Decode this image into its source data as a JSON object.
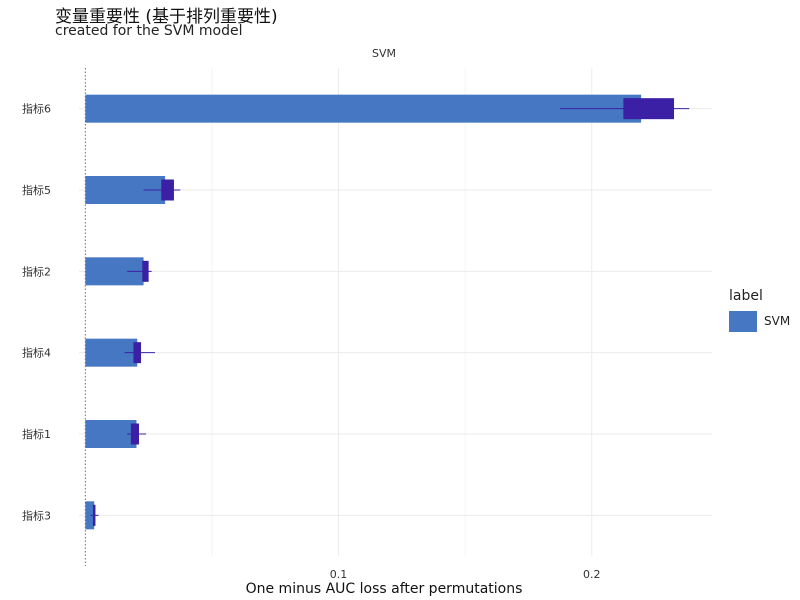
{
  "chart_data": {
    "type": "bar",
    "title": "变量重要性 (基于排列重要性)",
    "subtitle": "created for the SVM model",
    "facet_label": "SVM",
    "xlabel": "One minus AUC loss after permutations",
    "ylabel": "",
    "xlim": [
      -0.0025,
      0.2475
    ],
    "x_ticks": [
      0.1,
      0.2
    ],
    "x_tick_labels": [
      "0.1",
      "0.2"
    ],
    "baseline": 0.0,
    "orientation": "horizontal",
    "categories": [
      "指标6",
      "指标5",
      "指标2",
      "指标4",
      "指标1",
      "指标3"
    ],
    "series": [
      {
        "name": "SVM",
        "values": [
          0.2195,
          0.0315,
          0.023,
          0.0205,
          0.0202,
          0.0035
        ]
      }
    ],
    "boxplots": [
      {
        "category": "指标6",
        "whisker_low": 0.1875,
        "q1": 0.2125,
        "q3": 0.2325,
        "whisker_high": 0.2385
      },
      {
        "category": "指标5",
        "whisker_low": 0.023,
        "q1": 0.03,
        "q3": 0.035,
        "whisker_high": 0.0375
      },
      {
        "category": "指标2",
        "whisker_low": 0.0165,
        "q1": 0.0225,
        "q3": 0.025,
        "whisker_high": 0.0262
      },
      {
        "category": "指标4",
        "whisker_low": 0.0155,
        "q1": 0.019,
        "q3": 0.022,
        "whisker_high": 0.0275
      },
      {
        "category": "指标1",
        "whisker_low": 0.0165,
        "q1": 0.018,
        "q3": 0.0212,
        "whisker_high": 0.024
      },
      {
        "category": "指标3",
        "whisker_low": 0.002,
        "q1": 0.003,
        "q3": 0.004,
        "whisker_high": 0.0052
      }
    ],
    "legend": {
      "title": "label",
      "entries": [
        "SVM"
      ],
      "position": "right"
    },
    "grid": true
  },
  "colors": {
    "bar": "#4677c2",
    "box": "#3b20a6",
    "grid": "#ebebeb",
    "baseline": "#6a6a8a",
    "text": "#333333"
  }
}
